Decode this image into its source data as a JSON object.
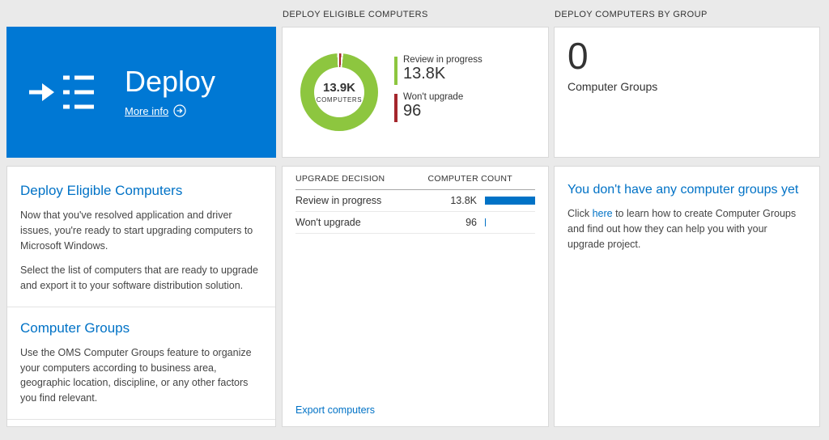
{
  "deploy": {
    "title": "Deploy",
    "more_info": "More info",
    "sections": [
      {
        "heading": "Deploy Eligible Computers",
        "paragraphs": [
          "Now that you've resolved application and driver issues, you're ready to start upgrading computers to Microsoft Windows.",
          "Select the list of computers that are ready to upgrade and export it to your software distribution solution."
        ]
      },
      {
        "heading": "Computer Groups",
        "paragraphs": [
          "Use the OMS Computer Groups feature to organize your computers according to business area, geographic location, discipline, or any other factors you find relevant."
        ]
      }
    ]
  },
  "eligible": {
    "header": "DEPLOY ELIGIBLE COMPUTERS",
    "donut": {
      "center_value": "13.9K",
      "center_label": "COMPUTERS",
      "legend": [
        {
          "label": "Review in progress",
          "value": "13.8K",
          "color": "#8dc63f"
        },
        {
          "label": "Won't upgrade",
          "value": "96",
          "color": "#a4262c"
        }
      ]
    },
    "table": {
      "headers": [
        "UPGRADE DECISION",
        "COMPUTER COUNT"
      ],
      "rows": [
        {
          "label": "Review in progress",
          "value": "13.8K",
          "bar_pct": 100
        },
        {
          "label": "Won't upgrade",
          "value": "96",
          "bar_pct": 2
        }
      ]
    },
    "export_link": "Export computers"
  },
  "groups": {
    "header": "DEPLOY COMPUTERS BY GROUP",
    "count": "0",
    "count_label": "Computer Groups",
    "empty": {
      "heading": "You don't have any computer groups yet",
      "text_before": "Click ",
      "link_text": "here",
      "text_after": " to learn how to create Computer Groups and find out how they can help you with your upgrade project."
    }
  },
  "chart_data": {
    "type": "pie",
    "title": "Deploy Eligible Computers",
    "categories": [
      "Review in progress",
      "Won't upgrade"
    ],
    "values": [
      13800,
      96
    ],
    "center_total": "13.9K COMPUTERS",
    "colors": [
      "#8dc63f",
      "#a4262c"
    ],
    "legend_position": "right"
  },
  "colors": {
    "hero_blue": "#0078d4",
    "link_blue": "#0072c6",
    "chart_green": "#8dc63f",
    "chart_red": "#a4262c",
    "bar_blue": "#0072c6",
    "page_background": "#eaeaea"
  }
}
